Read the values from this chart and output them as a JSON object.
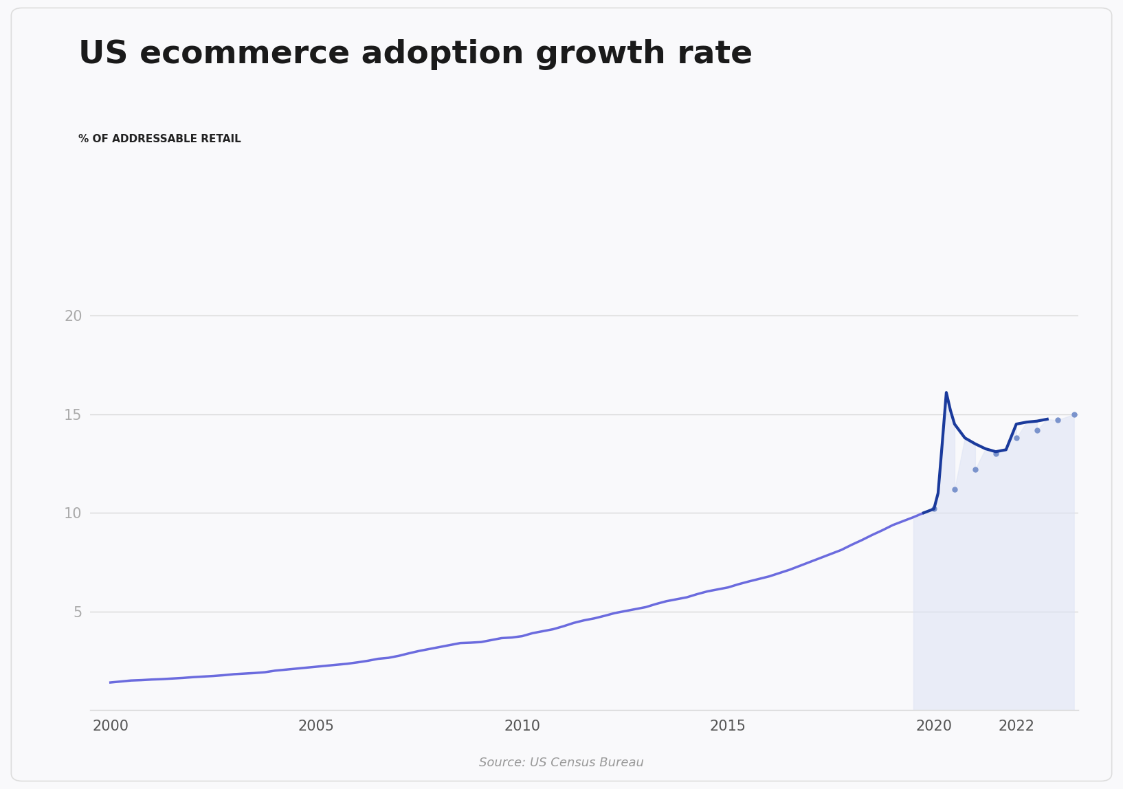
{
  "title": "US ecommerce adoption growth rate",
  "subtitle": "% OF ADDRESSABLE RETAIL",
  "source": "Source: US Census Bureau",
  "background_color": "#f9f9fb",
  "line_color_main": "#1a3a9c",
  "line_color_early": "#6b6bde",
  "fill_color": "#dde3f5",
  "dotted_color": "#7a93cc",
  "grid_color": "#d8d8d8",
  "ylim": [
    0,
    22
  ],
  "yticks": [
    5,
    10,
    15,
    20
  ],
  "xlim": [
    1999.5,
    2023.5
  ],
  "xticks": [
    2000,
    2005,
    2010,
    2015,
    2020,
    2022
  ],
  "years_main": [
    2000.0,
    2000.25,
    2000.5,
    2000.75,
    2001.0,
    2001.25,
    2001.5,
    2001.75,
    2002.0,
    2002.25,
    2002.5,
    2002.75,
    2003.0,
    2003.25,
    2003.5,
    2003.75,
    2004.0,
    2004.25,
    2004.5,
    2004.75,
    2005.0,
    2005.25,
    2005.5,
    2005.75,
    2006.0,
    2006.25,
    2006.5,
    2006.75,
    2007.0,
    2007.25,
    2007.5,
    2007.75,
    2008.0,
    2008.25,
    2008.5,
    2008.75,
    2009.0,
    2009.25,
    2009.5,
    2009.75,
    2010.0,
    2010.25,
    2010.5,
    2010.75,
    2011.0,
    2011.25,
    2011.5,
    2011.75,
    2012.0,
    2012.25,
    2012.5,
    2012.75,
    2013.0,
    2013.25,
    2013.5,
    2013.75,
    2014.0,
    2014.25,
    2014.5,
    2014.75,
    2015.0,
    2015.25,
    2015.5,
    2015.75,
    2016.0,
    2016.25,
    2016.5,
    2016.75,
    2017.0,
    2017.25,
    2017.5,
    2017.75,
    2018.0,
    2018.25,
    2018.5,
    2018.75,
    2019.0,
    2019.25,
    2019.5,
    2019.75,
    2020.0,
    2020.1,
    2020.2,
    2020.3,
    2020.4,
    2020.5,
    2020.75,
    2021.0,
    2021.25,
    2021.5,
    2021.75,
    2022.0,
    2022.25,
    2022.5,
    2022.75
  ],
  "values_main": [
    1.4,
    1.45,
    1.5,
    1.52,
    1.55,
    1.57,
    1.6,
    1.63,
    1.67,
    1.7,
    1.73,
    1.77,
    1.82,
    1.85,
    1.88,
    1.92,
    2.0,
    2.05,
    2.1,
    2.15,
    2.2,
    2.25,
    2.3,
    2.35,
    2.42,
    2.5,
    2.6,
    2.65,
    2.75,
    2.88,
    3.0,
    3.1,
    3.2,
    3.3,
    3.4,
    3.42,
    3.45,
    3.55,
    3.65,
    3.68,
    3.75,
    3.9,
    4.0,
    4.1,
    4.25,
    4.42,
    4.55,
    4.65,
    4.78,
    4.92,
    5.02,
    5.12,
    5.22,
    5.38,
    5.52,
    5.62,
    5.72,
    5.88,
    6.02,
    6.12,
    6.22,
    6.38,
    6.52,
    6.65,
    6.78,
    6.95,
    7.12,
    7.32,
    7.52,
    7.72,
    7.92,
    8.12,
    8.38,
    8.62,
    8.88,
    9.12,
    9.38,
    9.58,
    9.78,
    10.0,
    10.2,
    11.0,
    13.5,
    16.1,
    15.2,
    14.5,
    13.8,
    13.5,
    13.25,
    13.1,
    13.2,
    14.5,
    14.6,
    14.65,
    14.75
  ],
  "years_dotted": [
    2020.0,
    2020.5,
    2021.0,
    2021.5,
    2022.0,
    2022.5,
    2023.0,
    2023.4
  ],
  "values_dotted": [
    10.2,
    11.2,
    12.2,
    13.0,
    13.8,
    14.2,
    14.7,
    15.0
  ],
  "fill_start_year": 2019.5,
  "title_fontsize": 34,
  "subtitle_fontsize": 11,
  "tick_fontsize": 15,
  "source_fontsize": 13
}
